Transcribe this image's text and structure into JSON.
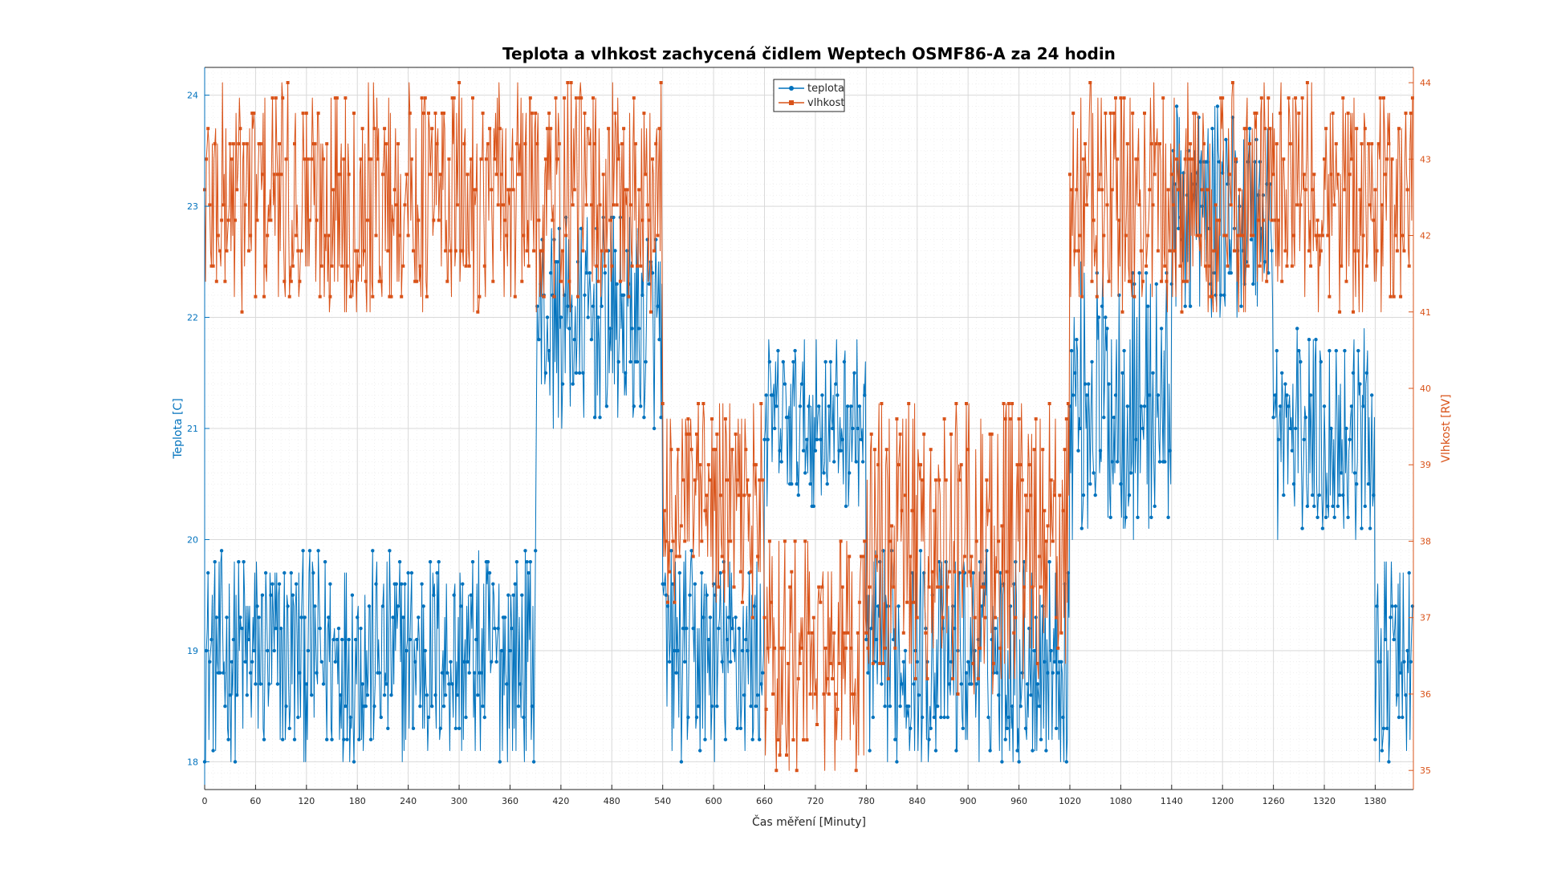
{
  "colors": {
    "temperature": "#0072BD",
    "humidity": "#D95319",
    "grid": "#d9d9d9",
    "minorGrid": "#ebebeb",
    "axis": "#262626"
  },
  "chart_data": {
    "type": "line",
    "title": "Teplota a vlhkost zachycená čidlem Weptech OSMF86-A za 24 hodin",
    "xlabel": "Čas měření [Minuty]",
    "ylabel_left": "Teplota [C]",
    "ylabel_right": "Vlhkost [RV]",
    "xlim": [
      0,
      1425
    ],
    "ylim_left": [
      17.75,
      24.25
    ],
    "ylim_right": [
      34.75,
      44.2
    ],
    "x_ticks": [
      "0",
      "60",
      "120",
      "180",
      "240",
      "300",
      "360",
      "420",
      "480",
      "540",
      "600",
      "660",
      "720",
      "780",
      "840",
      "900",
      "960",
      "1020",
      "1080",
      "1140",
      "1200",
      "1260",
      "1320",
      "1380"
    ],
    "y_ticks_left": [
      "18",
      "19",
      "20",
      "21",
      "22",
      "23",
      "24"
    ],
    "y_ticks_right": [
      "35",
      "36",
      "37",
      "38",
      "39",
      "40",
      "41",
      "42",
      "43",
      "44"
    ],
    "grid": true,
    "minor_grid": true,
    "legend_position": "top-center",
    "legend": [
      "teplota",
      "vlhkost"
    ],
    "sampling_interval_min": 1,
    "series": [
      {
        "name": "teplota",
        "axis": "left",
        "marker": "circle",
        "segments": [
          {
            "from": 0,
            "to": 389,
            "min": 18.0,
            "max": 19.9
          },
          {
            "from": 390,
            "to": 390,
            "min": 19.9,
            "max": 19.9
          },
          {
            "from": 391,
            "to": 539,
            "min": 21.0,
            "max": 22.9
          },
          {
            "from": 540,
            "to": 659,
            "min": 18.0,
            "max": 19.9
          },
          {
            "from": 660,
            "to": 779,
            "min": 20.3,
            "max": 21.8
          },
          {
            "from": 780,
            "to": 1019,
            "min": 18.0,
            "max": 19.9
          },
          {
            "from": 1020,
            "to": 1139,
            "min": 20.0,
            "max": 22.5
          },
          {
            "from": 1140,
            "to": 1259,
            "min": 22.0,
            "max": 23.9
          },
          {
            "from": 1260,
            "to": 1379,
            "min": 20.0,
            "max": 21.9
          },
          {
            "from": 1380,
            "to": 1424,
            "min": 18.0,
            "max": 19.8
          }
        ]
      },
      {
        "name": "vlhkost",
        "axis": "right",
        "marker": "square",
        "segments": [
          {
            "from": 0,
            "to": 539,
            "min": 41.0,
            "max": 44.0
          },
          {
            "from": 540,
            "to": 659,
            "min": 37.0,
            "max": 39.9
          },
          {
            "from": 660,
            "to": 779,
            "min": 35.0,
            "max": 38.0
          },
          {
            "from": 780,
            "to": 1019,
            "min": 36.0,
            "max": 39.9
          },
          {
            "from": 1020,
            "to": 1424,
            "min": 41.0,
            "max": 44.0
          }
        ]
      }
    ]
  }
}
